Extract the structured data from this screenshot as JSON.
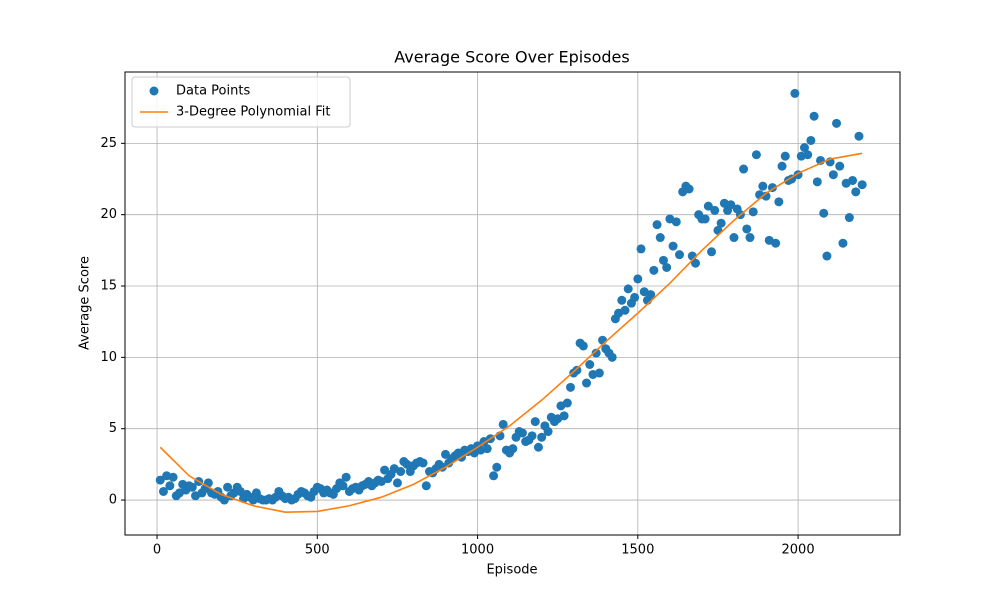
{
  "chart_data": {
    "type": "scatter",
    "title": "Average Score Over Episodes",
    "x_label": "Episode",
    "y_label": "Average Score",
    "xlim": [
      -100,
      2318
    ],
    "ylim": [
      -2.45,
      30
    ],
    "xticks": [
      0,
      500,
      1000,
      1500,
      2000
    ],
    "yticks": [
      0,
      5,
      10,
      15,
      20,
      25
    ],
    "grid": true,
    "legend": "upper left",
    "series": [
      {
        "name": "Data Points",
        "kind": "scatter",
        "color": "#1f77b4",
        "x": [
          10,
          20,
          30,
          40,
          50,
          60,
          70,
          80,
          90,
          100,
          110,
          120,
          130,
          140,
          150,
          160,
          170,
          180,
          190,
          200,
          210,
          220,
          230,
          240,
          250,
          260,
          270,
          280,
          290,
          300,
          310,
          320,
          330,
          340,
          350,
          360,
          370,
          380,
          390,
          400,
          410,
          420,
          430,
          440,
          450,
          460,
          470,
          480,
          490,
          500,
          510,
          520,
          530,
          540,
          550,
          560,
          570,
          580,
          590,
          600,
          610,
          620,
          630,
          640,
          650,
          660,
          670,
          680,
          690,
          700,
          710,
          720,
          730,
          740,
          750,
          760,
          770,
          780,
          790,
          800,
          810,
          820,
          830,
          840,
          850,
          860,
          870,
          880,
          890,
          900,
          910,
          920,
          930,
          940,
          950,
          960,
          970,
          980,
          990,
          1000,
          1010,
          1020,
          1030,
          1040,
          1050,
          1060,
          1070,
          1080,
          1090,
          1100,
          1110,
          1120,
          1130,
          1140,
          1150,
          1160,
          1170,
          1180,
          1190,
          1200,
          1210,
          1220,
          1230,
          1240,
          1250,
          1260,
          1270,
          1280,
          1290,
          1300,
          1310,
          1320,
          1330,
          1340,
          1350,
          1360,
          1370,
          1380,
          1390,
          1400,
          1410,
          1420,
          1430,
          1440,
          1450,
          1460,
          1470,
          1480,
          1490,
          1500,
          1510,
          1520,
          1530,
          1540,
          1550,
          1560,
          1570,
          1580,
          1590,
          1600,
          1610,
          1620,
          1630,
          1640,
          1650,
          1660,
          1670,
          1680,
          1690,
          1700,
          1710,
          1720,
          1730,
          1740,
          1750,
          1760,
          1770,
          1780,
          1790,
          1800,
          1810,
          1820,
          1830,
          1840,
          1850,
          1860,
          1870,
          1880,
          1890,
          1900,
          1910,
          1920,
          1930,
          1940,
          1950,
          1960,
          1970,
          1980,
          1990,
          2000,
          2010,
          2020,
          2030,
          2040,
          2050,
          2060,
          2070,
          2080,
          2090,
          2100,
          2110,
          2120,
          2130,
          2140,
          2150,
          2160,
          2170,
          2180,
          2190,
          2200
        ],
        "values": [
          1.4,
          0.6,
          1.7,
          1.0,
          1.6,
          0.3,
          0.5,
          1.1,
          0.7,
          1.0,
          0.9,
          0.3,
          1.3,
          0.5,
          0.8,
          1.2,
          0.5,
          0.4,
          0.6,
          0.2,
          0.0,
          0.9,
          0.3,
          0.5,
          0.9,
          0.6,
          0.1,
          0.4,
          0.2,
          0.0,
          0.5,
          0.1,
          0.0,
          0.0,
          0.1,
          0.0,
          0.2,
          0.6,
          0.3,
          0.1,
          0.2,
          0.0,
          0.1,
          0.4,
          0.6,
          0.5,
          0.3,
          0.2,
          0.6,
          0.9,
          0.8,
          0.5,
          0.7,
          0.5,
          0.4,
          0.8,
          1.2,
          1.0,
          1.6,
          0.6,
          0.8,
          0.9,
          0.7,
          1.0,
          1.1,
          1.3,
          1.0,
          1.2,
          1.4,
          1.3,
          2.1,
          1.5,
          1.8,
          2.2,
          1.2,
          2.0,
          2.7,
          2.5,
          2.0,
          2.4,
          2.6,
          2.7,
          2.6,
          1.0,
          2.0,
          1.9,
          2.2,
          2.5,
          2.3,
          3.2,
          2.6,
          2.9,
          3.1,
          3.3,
          3.0,
          3.5,
          3.4,
          3.6,
          3.3,
          3.8,
          3.5,
          4.1,
          3.6,
          4.3,
          1.7,
          2.3,
          4.5,
          5.3,
          3.5,
          3.3,
          3.6,
          4.4,
          4.8,
          4.7,
          4.1,
          4.2,
          4.5,
          5.5,
          3.7,
          4.4,
          5.2,
          4.8,
          5.8,
          5.5,
          5.7,
          6.6,
          5.9,
          6.8,
          7.9,
          8.9,
          9.1,
          11.0,
          10.8,
          8.2,
          9.5,
          8.8,
          10.3,
          8.9,
          11.2,
          10.6,
          10.3,
          10.0,
          12.7,
          13.1,
          14.0,
          13.3,
          14.8,
          13.8,
          14.2,
          15.5,
          17.6,
          14.6,
          14.0,
          14.4,
          16.1,
          19.3,
          18.4,
          16.8,
          16.3,
          19.7,
          17.8,
          19.5,
          17.2,
          21.6,
          22.0,
          21.8,
          17.1,
          16.6,
          20.0,
          19.7,
          19.7,
          20.6,
          17.4,
          20.3,
          18.9,
          19.4,
          20.8,
          20.3,
          20.7,
          18.4,
          20.4,
          20.0,
          23.2,
          19.0,
          18.4,
          20.2,
          24.2,
          21.4,
          22.0,
          21.3,
          18.2,
          21.9,
          18.0,
          20.9,
          23.4,
          24.1,
          22.4,
          22.5,
          28.5,
          22.8,
          24.1,
          24.7,
          24.2,
          25.2,
          26.9,
          22.3,
          23.8,
          20.1,
          17.1,
          23.7,
          22.8,
          26.4,
          23.4,
          18.0,
          22.2,
          19.8,
          22.4,
          21.6,
          25.5,
          22.1
        ]
      },
      {
        "name": "3-Degree Polynomial Fit",
        "kind": "line",
        "color": "#ff7f0e",
        "x": [
          10,
          100,
          200,
          300,
          400,
          500,
          600,
          700,
          800,
          900,
          1000,
          1100,
          1200,
          1300,
          1400,
          1500,
          1600,
          1700,
          1800,
          1900,
          2000,
          2100,
          2200
        ],
        "values": [
          3.7,
          1.7,
          0.4,
          -0.4,
          -0.85,
          -0.8,
          -0.4,
          0.2,
          1.1,
          2.3,
          3.7,
          5.2,
          7.0,
          9.0,
          11.1,
          13.1,
          15.2,
          17.5,
          19.6,
          21.5,
          22.9,
          23.9,
          24.3
        ]
      }
    ]
  }
}
